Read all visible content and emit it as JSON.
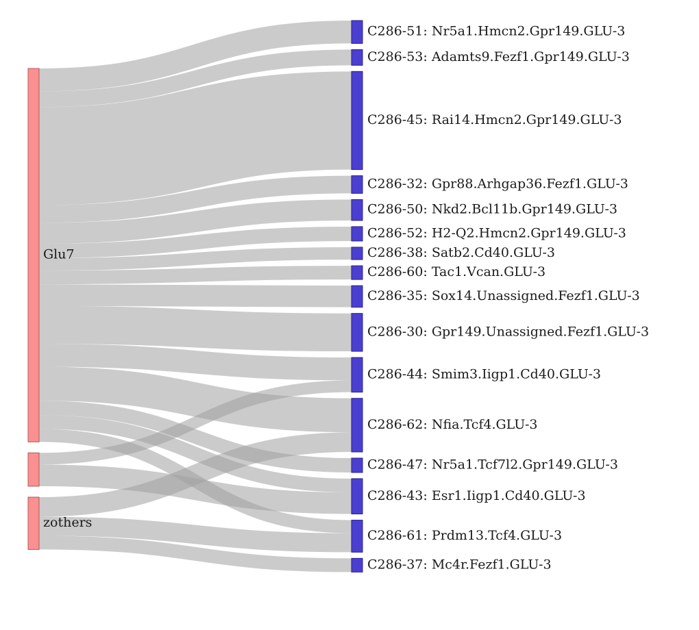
{
  "chart_data": {
    "type": "sankey",
    "source_nodes": [
      {
        "id": "Glu7",
        "label": "Glu7",
        "color": "#fa9090"
      },
      {
        "id": "unlabeled",
        "label": "",
        "color": "#fa9090"
      },
      {
        "id": "zothers",
        "label": "zothers",
        "color": "#fa9090"
      }
    ],
    "target_nodes": [
      {
        "id": "C286-51",
        "label": "C286-51: Nr5a1.Hmcn2.Gpr149.GLU-3",
        "color": "#4a3fd0"
      },
      {
        "id": "C286-53",
        "label": "C286-53: Adamts9.Fezf1.Gpr149.GLU-3",
        "color": "#4a3fd0"
      },
      {
        "id": "C286-45",
        "label": "C286-45: Rai14.Hmcn2.Gpr149.GLU-3",
        "color": "#4a3fd0"
      },
      {
        "id": "C286-32",
        "label": "C286-32: Gpr88.Arhgap36.Fezf1.GLU-3",
        "color": "#4a3fd0"
      },
      {
        "id": "C286-50",
        "label": "C286-50: Nkd2.Bcl11b.Gpr149.GLU-3",
        "color": "#4a3fd0"
      },
      {
        "id": "C286-52",
        "label": "C286-52: H2-Q2.Hmcn2.Gpr149.GLU-3",
        "color": "#4a3fd0"
      },
      {
        "id": "C286-38",
        "label": "C286-38: Satb2.Cd40.GLU-3",
        "color": "#4a3fd0"
      },
      {
        "id": "C286-60",
        "label": "C286-60: Tac1.Vcan.GLU-3",
        "color": "#4a3fd0"
      },
      {
        "id": "C286-35",
        "label": "C286-35: Sox14.Unassigned.Fezf1.GLU-3",
        "color": "#4a3fd0"
      },
      {
        "id": "C286-30",
        "label": "C286-30: Gpr149.Unassigned.Fezf1.GLU-3",
        "color": "#4a3fd0"
      },
      {
        "id": "C286-44",
        "label": "C286-44: Smim3.Iigp1.Cd40.GLU-3",
        "color": "#4a3fd0"
      },
      {
        "id": "C286-62",
        "label": "C286-62: Nfia.Tcf4.GLU-3",
        "color": "#4a3fd0"
      },
      {
        "id": "C286-47",
        "label": "C286-47: Nr5a1.Tcf7l2.Gpr149.GLU-3",
        "color": "#4a3fd0"
      },
      {
        "id": "C286-43",
        "label": "C286-43: Esr1.Iigp1.Cd40.GLU-3",
        "color": "#4a3fd0"
      },
      {
        "id": "C286-61",
        "label": "C286-61: Prdm13.Tcf4.GLU-3",
        "color": "#4a3fd0"
      },
      {
        "id": "C286-37",
        "label": "C286-37: Mc4r.Fezf1.GLU-3",
        "color": "#4a3fd0"
      }
    ],
    "links": [
      {
        "source": "Glu7",
        "target": "C286-51",
        "value": 35
      },
      {
        "source": "Glu7",
        "target": "C286-53",
        "value": 24
      },
      {
        "source": "Glu7",
        "target": "C286-45",
        "value": 150
      },
      {
        "source": "Glu7",
        "target": "C286-32",
        "value": 27
      },
      {
        "source": "Glu7",
        "target": "C286-50",
        "value": 32
      },
      {
        "source": "Glu7",
        "target": "C286-52",
        "value": 22
      },
      {
        "source": "Glu7",
        "target": "C286-38",
        "value": 19
      },
      {
        "source": "Glu7",
        "target": "C286-60",
        "value": 21
      },
      {
        "source": "Glu7",
        "target": "C286-35",
        "value": 33
      },
      {
        "source": "Glu7",
        "target": "C286-30",
        "value": 58
      },
      {
        "source": "Glu7",
        "target": "C286-44",
        "value": 35
      },
      {
        "source": "Glu7",
        "target": "C286-62",
        "value": 52
      },
      {
        "source": "Glu7",
        "target": "C286-47",
        "value": 22
      },
      {
        "source": "Glu7",
        "target": "C286-43",
        "value": 21
      },
      {
        "source": "Glu7",
        "target": "C286-61",
        "value": 20
      },
      {
        "source": "unlabeled",
        "target": "C286-44",
        "value": 18
      },
      {
        "source": "unlabeled",
        "target": "C286-43",
        "value": 33
      },
      {
        "source": "zothers",
        "target": "C286-62",
        "value": 30
      },
      {
        "source": "zothers",
        "target": "C286-61",
        "value": 29
      },
      {
        "source": "zothers",
        "target": "C286-37",
        "value": 21
      }
    ]
  }
}
